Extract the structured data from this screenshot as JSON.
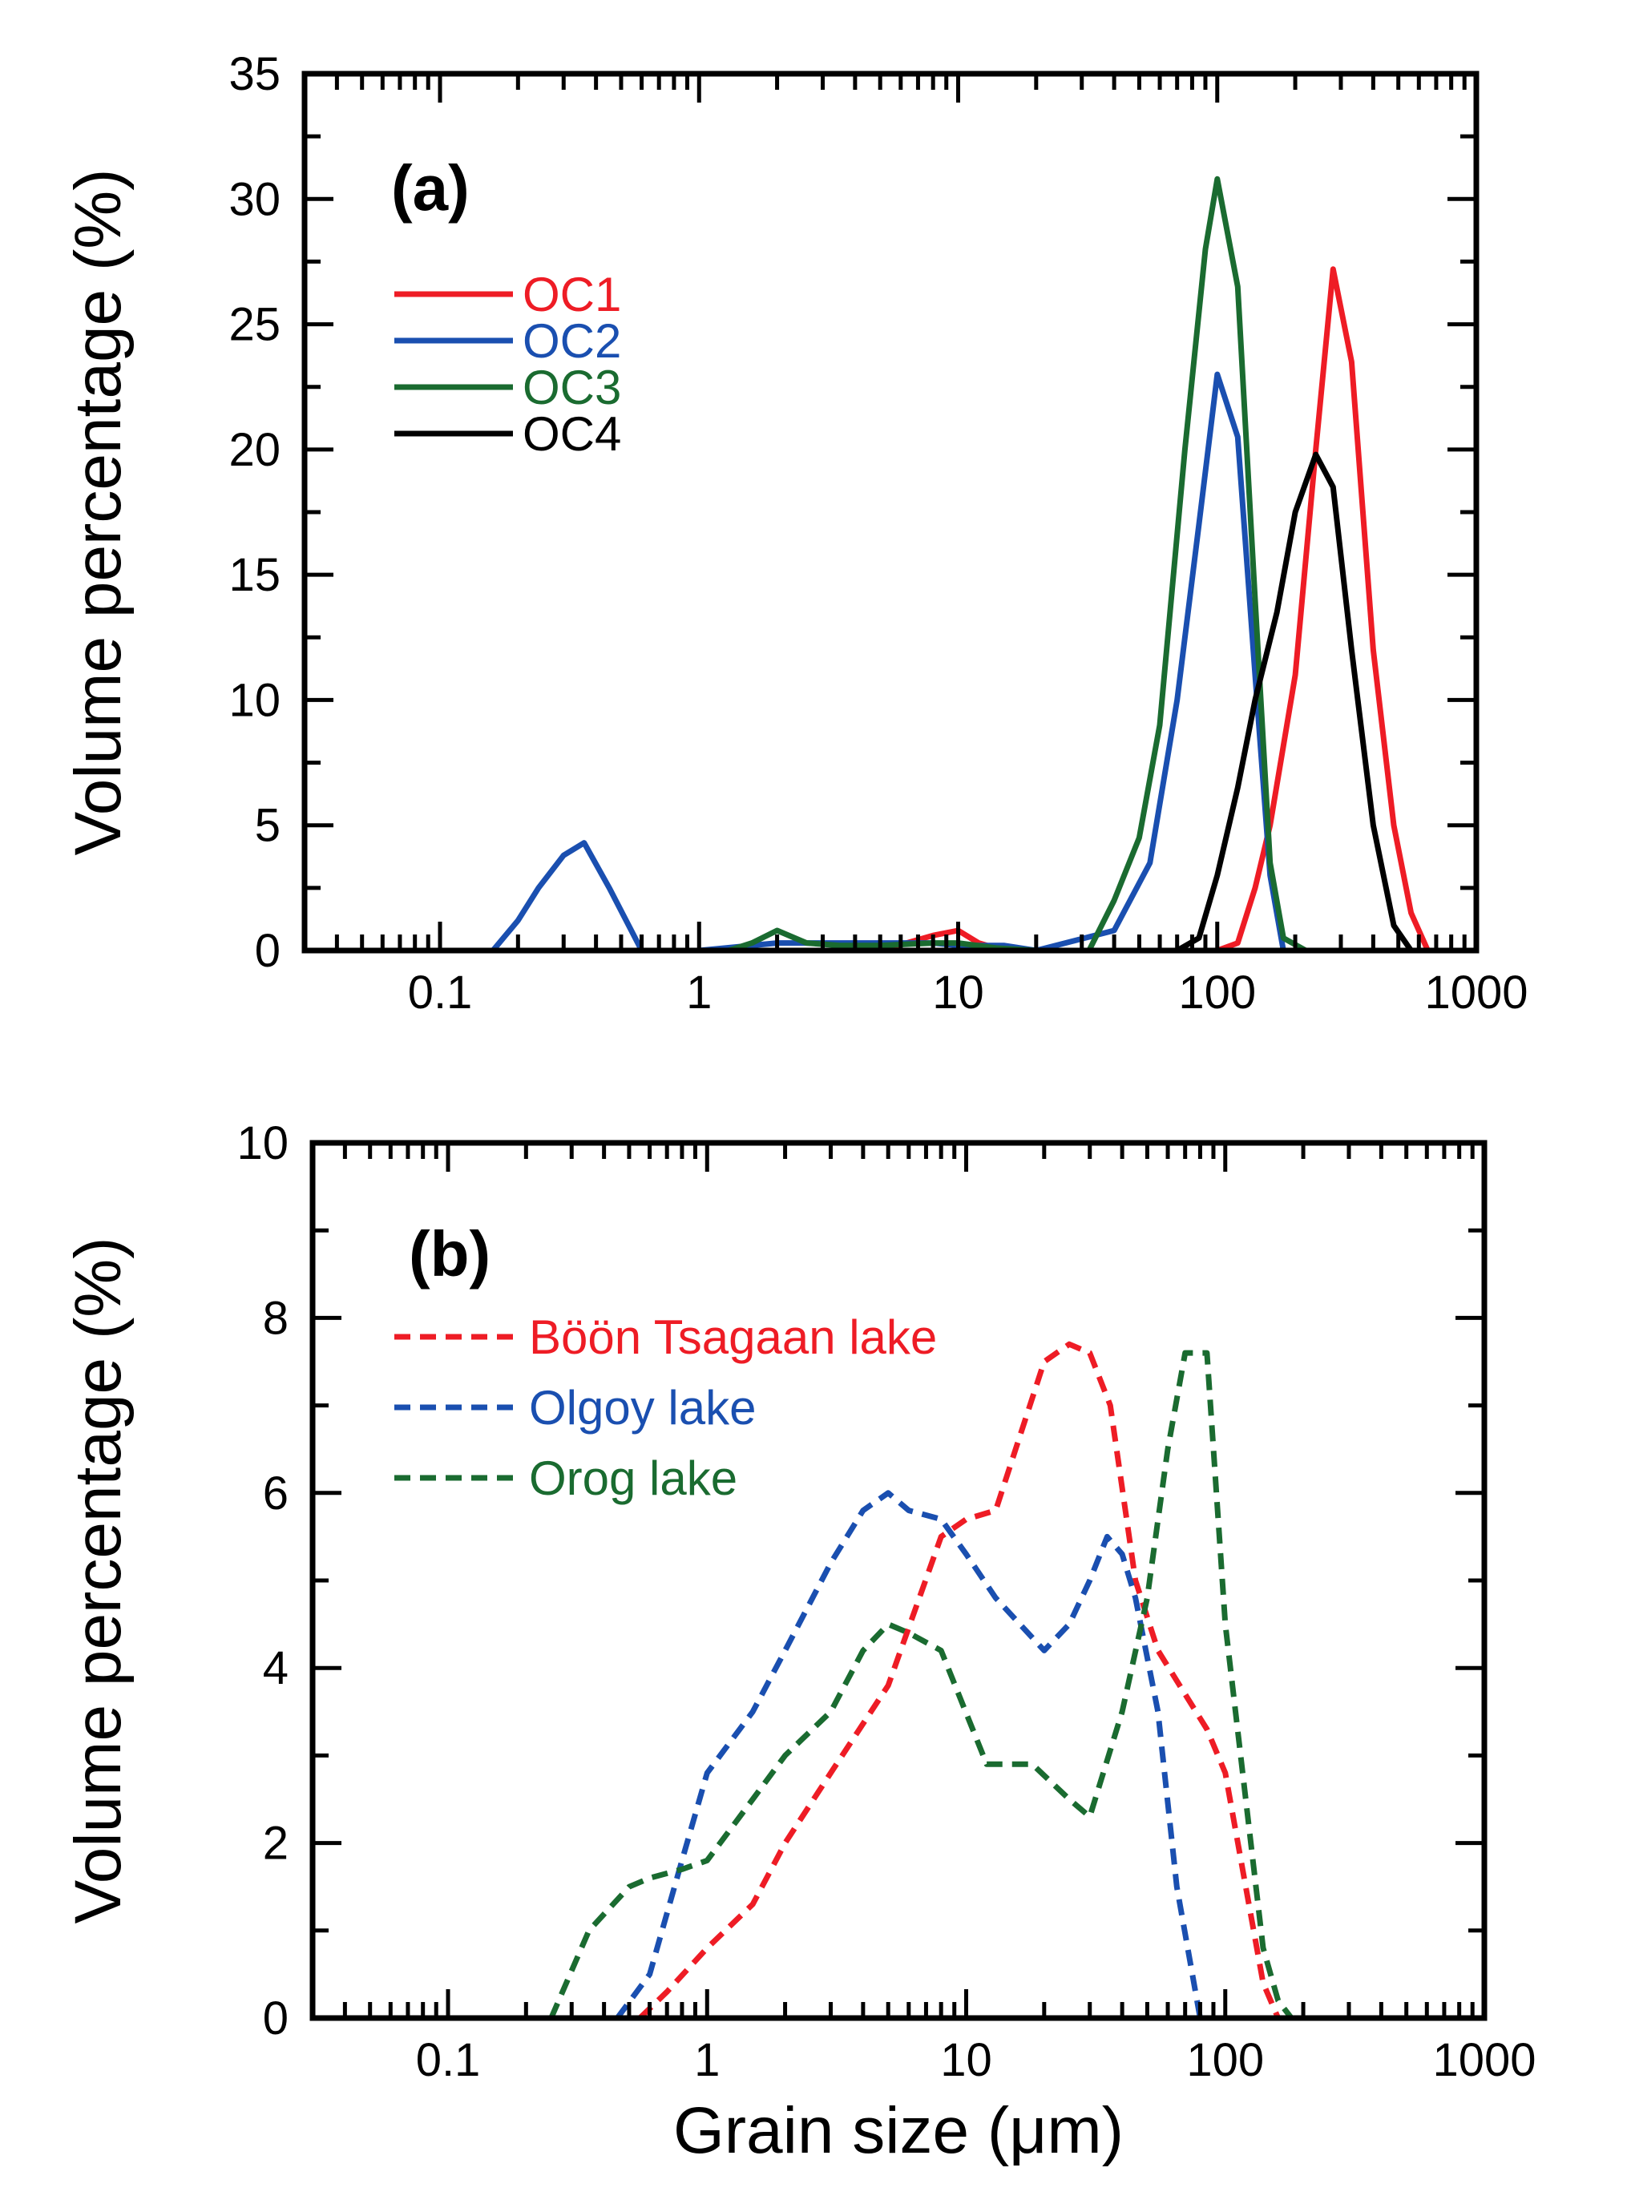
{
  "chart_data": [
    {
      "type": "line",
      "panel_label": "(a)",
      "xlabel": "",
      "ylabel": "Volume percentage (%)",
      "xscale": "log",
      "xlim": [
        0.03,
        1000
      ],
      "ylim": [
        0,
        35
      ],
      "xticks": [
        0.1,
        1,
        10,
        100,
        1000
      ],
      "xtick_labels": [
        "0.1",
        "1",
        "10",
        "100",
        "1000"
      ],
      "yticks": [
        0,
        5,
        10,
        15,
        20,
        25,
        30,
        35
      ],
      "ytick_labels": [
        "0",
        "5",
        "10",
        "15",
        "20",
        "25",
        "30",
        "35"
      ],
      "legend_position": "upper-left",
      "series": [
        {
          "name": "OC1",
          "color": "#ee1c25",
          "style": "solid",
          "x": [
            0.4,
            0.6,
            1,
            2,
            5,
            8,
            10,
            12,
            15,
            30,
            100,
            120,
            140,
            160,
            200,
            240,
            280,
            330,
            400,
            480,
            560,
            650
          ],
          "y": [
            0,
            0,
            0,
            0,
            0,
            0.6,
            0.8,
            0.3,
            0,
            0,
            0,
            0.3,
            2.5,
            5,
            11,
            20,
            27.2,
            23.5,
            12,
            5,
            1.5,
            0
          ]
        },
        {
          "name": "OC2",
          "color": "#1a4fb0",
          "style": "solid",
          "x": [
            0.16,
            0.2,
            0.24,
            0.3,
            0.36,
            0.45,
            0.6,
            1,
            2,
            3,
            5,
            8,
            10,
            15,
            20,
            40,
            55,
            70,
            85,
            100,
            120,
            140,
            160,
            180
          ],
          "y": [
            0,
            1.2,
            2.5,
            3.8,
            4.3,
            2.5,
            0,
            0,
            0.3,
            0.3,
            0.3,
            0.3,
            0.2,
            0.2,
            0,
            0.8,
            3.5,
            10,
            17,
            23,
            20.5,
            11,
            3,
            0
          ]
        },
        {
          "name": "OC3",
          "color": "#1a6b30",
          "style": "solid",
          "x": [
            1.3,
            1.6,
            2,
            2.6,
            3.5,
            5,
            8,
            10,
            14,
            20,
            32,
            40,
            50,
            60,
            75,
            90,
            100,
            120,
            140,
            160,
            180,
            220
          ],
          "y": [
            0,
            0.3,
            0.8,
            0.3,
            0.2,
            0.2,
            0.3,
            0.3,
            0.1,
            0,
            0,
            2,
            4.5,
            9,
            20,
            28,
            30.8,
            26.5,
            14,
            3.5,
            0.5,
            0
          ]
        },
        {
          "name": "OC4",
          "color": "#000000",
          "style": "solid",
          "x": [
            70,
            85,
            100,
            120,
            140,
            170,
            200,
            240,
            280,
            330,
            400,
            480,
            560,
            650
          ],
          "y": [
            0,
            0.5,
            3,
            6.5,
            10,
            13.5,
            17.5,
            19.8,
            18.5,
            12,
            5,
            1,
            0,
            0
          ]
        }
      ]
    },
    {
      "type": "line",
      "panel_label": "(b)",
      "xlabel": "Grain size (μm)",
      "ylabel": "Volume percentage (%)",
      "xscale": "log",
      "xlim": [
        0.03,
        1000
      ],
      "ylim": [
        0,
        10
      ],
      "xticks": [
        0.1,
        1,
        10,
        100,
        1000
      ],
      "xtick_labels": [
        "0.1",
        "1",
        "10",
        "100",
        "1000"
      ],
      "yticks": [
        0,
        2,
        4,
        6,
        8,
        10
      ],
      "ytick_labels": [
        "0",
        "2",
        "4",
        "6",
        "8",
        "10"
      ],
      "legend_position": "upper-left",
      "series": [
        {
          "name": "Böön Tsagaan lake",
          "color": "#ee1c25",
          "style": "dashed",
          "x": [
            0.55,
            0.7,
            1,
            1.5,
            2,
            3,
            5,
            8,
            10,
            13,
            20,
            25,
            30,
            36,
            45,
            55,
            70,
            85,
            100,
            120,
            140,
            160
          ],
          "y": [
            0,
            0.3,
            0.8,
            1.3,
            2,
            2.8,
            3.8,
            5.5,
            5.7,
            5.8,
            7.5,
            7.7,
            7.6,
            7,
            5,
            4.2,
            3.7,
            3.3,
            2.8,
            1.5,
            0.4,
            0
          ]
        },
        {
          "name": "Olgoy lake",
          "color": "#1a4fb0",
          "style": "dashed",
          "x": [
            0.45,
            0.6,
            0.8,
            1,
            1.5,
            2,
            3,
            4,
            5,
            6,
            8,
            10,
            13,
            20,
            25,
            30,
            35,
            40,
            45,
            55,
            65,
            80
          ],
          "y": [
            0,
            0.5,
            1.8,
            2.8,
            3.5,
            4.2,
            5.2,
            5.8,
            6,
            5.8,
            5.7,
            5.3,
            4.8,
            4.2,
            4.5,
            5,
            5.5,
            5.3,
            4.8,
            3.5,
            1.5,
            0
          ]
        },
        {
          "name": "Orog lake",
          "color": "#1a6b30",
          "style": "dashed",
          "x": [
            0.25,
            0.35,
            0.5,
            0.6,
            0.8,
            1,
            1.5,
            2,
            3,
            4,
            5,
            6,
            8,
            12,
            18,
            25,
            30,
            40,
            50,
            60,
            70,
            85,
            100,
            120,
            140,
            160,
            180
          ],
          "y": [
            0,
            1,
            1.5,
            1.6,
            1.7,
            1.8,
            2.5,
            3,
            3.5,
            4.2,
            4.5,
            4.4,
            4.2,
            2.9,
            2.9,
            2.5,
            2.3,
            3.5,
            4.8,
            6.5,
            7.6,
            7.6,
            4.5,
            2.5,
            0.8,
            0.2,
            0
          ]
        }
      ]
    }
  ]
}
